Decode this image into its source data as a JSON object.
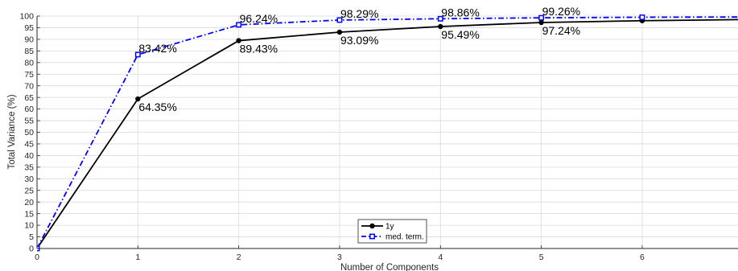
{
  "chart_data": {
    "type": "line",
    "title": "",
    "xlabel": "Number of Components",
    "ylabel": "Total Variance (%)",
    "xlim": [
      0,
      6.95
    ],
    "ylim": [
      0,
      100
    ],
    "xticks": [
      0,
      1,
      2,
      3,
      4,
      5,
      6
    ],
    "yticks": [
      0,
      5,
      10,
      15,
      20,
      25,
      30,
      35,
      40,
      45,
      50,
      55,
      60,
      65,
      70,
      75,
      80,
      85,
      90,
      95,
      100
    ],
    "grid": true,
    "legend_position": "bottom-center",
    "series": [
      {
        "name": "1y",
        "color": "#000000",
        "line_style": "solid",
        "marker": "filled-circle",
        "x": [
          0,
          1,
          2,
          3,
          4,
          5,
          6,
          7
        ],
        "y": [
          0,
          64.35,
          89.43,
          93.09,
          95.49,
          97.24,
          98.0,
          98.5
        ],
        "point_labels": [
          "",
          "64.35%",
          "89.43%",
          "93.09%",
          "95.49%",
          "97.24%",
          "",
          ""
        ]
      },
      {
        "name": "med. term.",
        "color": "#0000ff",
        "line_style": "dash-dot",
        "marker": "open-square",
        "x": [
          0,
          1,
          2,
          3,
          4,
          5,
          6,
          7
        ],
        "y": [
          0,
          83.42,
          96.24,
          98.29,
          98.86,
          99.26,
          99.5,
          99.6
        ],
        "point_labels": [
          "",
          "83.42%",
          "96.24%",
          "98.29%",
          "98.86%",
          "99.26%",
          "",
          ""
        ]
      }
    ]
  }
}
